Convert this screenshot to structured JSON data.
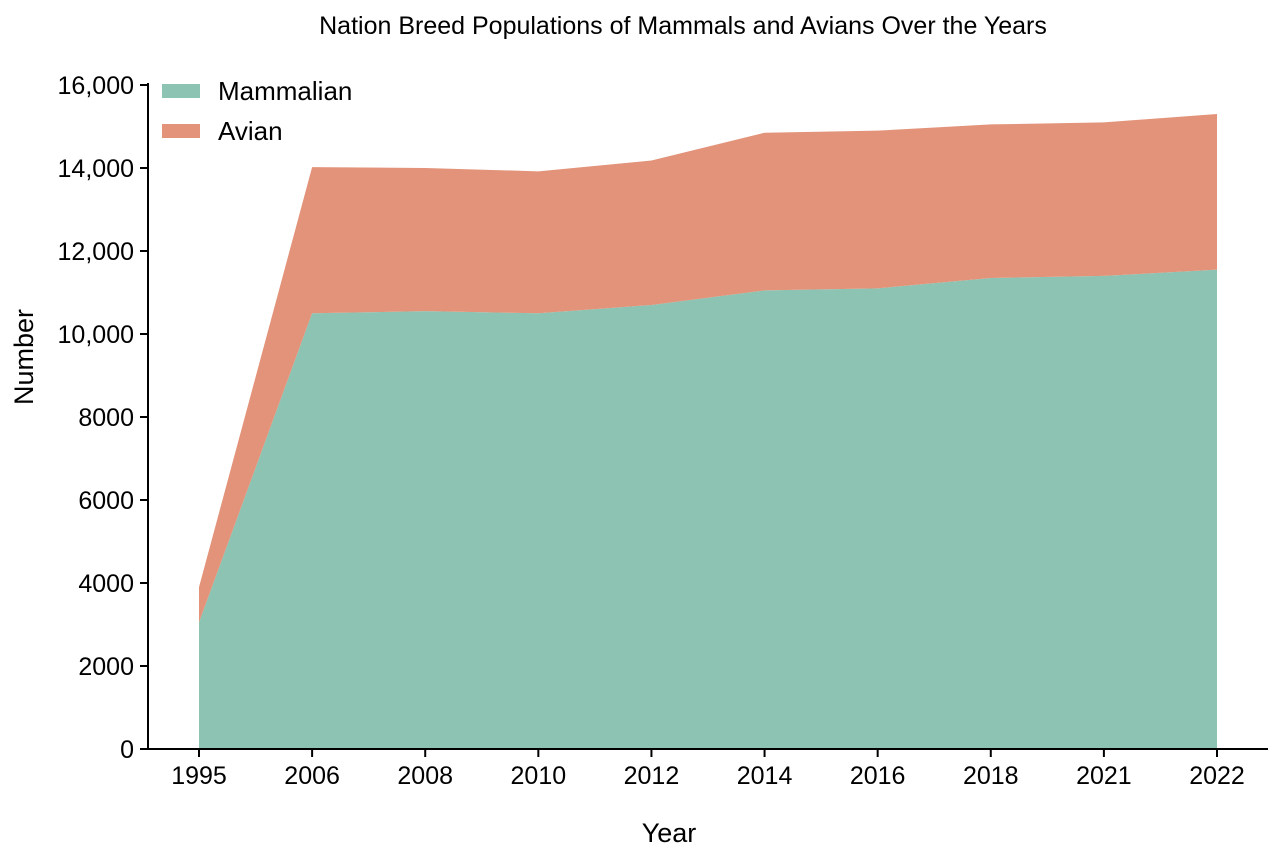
{
  "chart_data": {
    "type": "area",
    "stacked": true,
    "title": "Nation Breed Populations of Mammals and Avians Over the Years",
    "xlabel": "Year",
    "ylabel": "Number",
    "categories": [
      "1995",
      "2006",
      "2008",
      "2010",
      "2012",
      "2014",
      "2016",
      "2018",
      "2021",
      "2022"
    ],
    "series": [
      {
        "name": "Mammalian",
        "color": "#8dc3b3",
        "values": [
          3050,
          10500,
          10550,
          10500,
          10700,
          11050,
          11100,
          11350,
          11400,
          11550
        ]
      },
      {
        "name": "Avian",
        "color": "#e2937a",
        "values": [
          850,
          3520,
          3450,
          3420,
          3480,
          3800,
          3800,
          3700,
          3700,
          3750
        ]
      }
    ],
    "ylim": [
      0,
      16000
    ],
    "yticks": [
      0,
      2000,
      4000,
      6000,
      8000,
      10000,
      12000,
      14000,
      16000
    ],
    "ytick_labels": [
      "0",
      "2000",
      "4000",
      "6000",
      "8000",
      "10,000",
      "12,000",
      "14,000",
      "16,000"
    ],
    "grid": false,
    "legend_position": "top-left"
  }
}
